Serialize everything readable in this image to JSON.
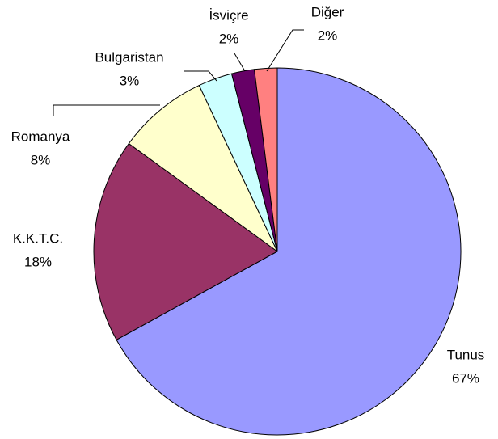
{
  "chart_data": {
    "type": "pie",
    "categories": [
      "Tunus",
      "K.K.T.C.",
      "Romanya",
      "Bulgaristan",
      "İsviçre",
      "Diğer"
    ],
    "values": [
      67,
      18,
      8,
      3,
      2,
      2
    ],
    "value_labels": [
      "67%",
      "18%",
      "8%",
      "3%",
      "2%",
      "2%"
    ],
    "colors": [
      "#9999ff",
      "#993366",
      "#ffffcc",
      "#ccffff",
      "#660066",
      "#ff8080"
    ]
  }
}
